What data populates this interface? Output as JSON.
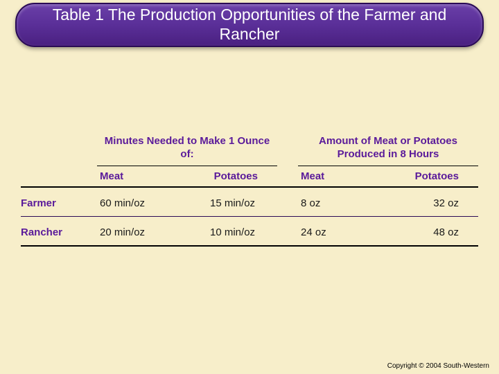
{
  "title": "Table 1 The Production Opportunities of the Farmer and Rancher",
  "colors": {
    "background": "#f7eeca",
    "banner_gradient_top": "#6a3fa8",
    "banner_gradient_bottom": "#4a2080",
    "banner_border": "#2a0a55",
    "heading_text": "#5a1a9a",
    "body_text": "#1a1a1a",
    "rule": "#000000"
  },
  "table": {
    "group_headers": {
      "minutes": "Minutes Needed to Make 1 Ounce of:",
      "amount": "Amount of Meat or Potatoes Produced in 8 Hours"
    },
    "sub_headers": {
      "meat": "Meat",
      "potatoes": "Potatoes"
    },
    "rows": [
      {
        "label": "Farmer",
        "minutes_meat": "60 min/oz",
        "minutes_potatoes": "15 min/oz",
        "amount_meat": "8 oz",
        "amount_potatoes": "32 oz"
      },
      {
        "label": "Rancher",
        "minutes_meat": "20 min/oz",
        "minutes_potatoes": "10 min/oz",
        "amount_meat": "24 oz",
        "amount_potatoes": "48 oz"
      }
    ]
  },
  "copyright": "Copyright © 2004 South-Western"
}
